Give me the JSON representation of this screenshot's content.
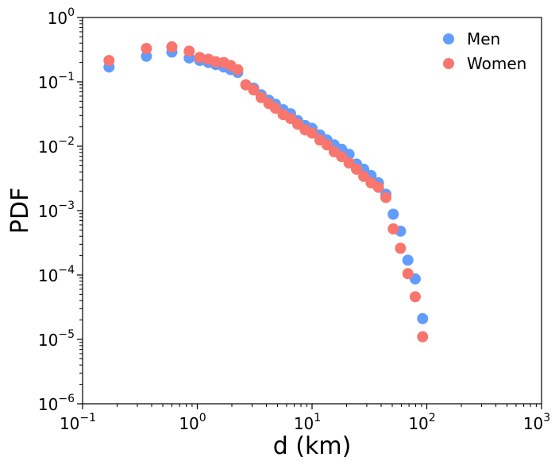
{
  "chart_data": {
    "type": "scatter",
    "title": "",
    "xlabel": "d (km)",
    "ylabel": "PDF",
    "xscale": "log",
    "yscale": "log",
    "xlim": [
      0.1,
      1000
    ],
    "ylim": [
      1e-06,
      1
    ],
    "x_ticks": [
      {
        "base": "10",
        "exp": "−1",
        "value": 0.1
      },
      {
        "base": "10",
        "exp": "0",
        "value": 1
      },
      {
        "base": "10",
        "exp": "1",
        "value": 10
      },
      {
        "base": "10",
        "exp": "2",
        "value": 100
      },
      {
        "base": "10",
        "exp": "3",
        "value": 1000
      }
    ],
    "y_ticks": [
      {
        "base": "10",
        "exp": "0",
        "value": 1
      },
      {
        "base": "10",
        "exp": "−1",
        "value": 0.1
      },
      {
        "base": "10",
        "exp": "−2",
        "value": 0.01
      },
      {
        "base": "10",
        "exp": "−3",
        "value": 0.001
      },
      {
        "base": "10",
        "exp": "−4",
        "value": 0.0001
      },
      {
        "base": "10",
        "exp": "−5",
        "value": 1e-05
      },
      {
        "base": "10",
        "exp": "−6",
        "value": 1e-06
      }
    ],
    "grid": false,
    "legend_position": "top-right",
    "series": [
      {
        "name": "Men",
        "color": "#619CFF",
        "points": [
          [
            0.17,
            0.17
          ],
          [
            0.36,
            0.25
          ],
          [
            0.6,
            0.29
          ],
          [
            0.85,
            0.235
          ],
          [
            1.05,
            0.215
          ],
          [
            1.25,
            0.2
          ],
          [
            1.45,
            0.185
          ],
          [
            1.7,
            0.17
          ],
          [
            1.95,
            0.155
          ],
          [
            2.25,
            0.14
          ],
          [
            2.65,
            0.09
          ],
          [
            3.1,
            0.08
          ],
          [
            3.6,
            0.063
          ],
          [
            4.2,
            0.052
          ],
          [
            4.8,
            0.045
          ],
          [
            5.6,
            0.037
          ],
          [
            6.5,
            0.032
          ],
          [
            7.5,
            0.025
          ],
          [
            8.7,
            0.021
          ],
          [
            10.0,
            0.019
          ],
          [
            11.7,
            0.015
          ],
          [
            13.5,
            0.0125
          ],
          [
            15.6,
            0.0105
          ],
          [
            18.1,
            0.009
          ],
          [
            21.0,
            0.0075
          ],
          [
            24.4,
            0.0053
          ],
          [
            28.2,
            0.0044
          ],
          [
            32.7,
            0.0035
          ],
          [
            37.9,
            0.0027
          ],
          [
            44.0,
            0.0018
          ],
          [
            51.0,
            0.00088
          ],
          [
            59.0,
            0.00048
          ],
          [
            68.4,
            0.00017
          ],
          [
            79.3,
            8.7e-05
          ],
          [
            92.0,
            2.1e-05
          ]
        ]
      },
      {
        "name": "Women",
        "color": "#F8766D",
        "points": [
          [
            0.17,
            0.215
          ],
          [
            0.36,
            0.33
          ],
          [
            0.6,
            0.35
          ],
          [
            0.85,
            0.3
          ],
          [
            1.05,
            0.24
          ],
          [
            1.25,
            0.225
          ],
          [
            1.45,
            0.205
          ],
          [
            1.7,
            0.2
          ],
          [
            1.95,
            0.18
          ],
          [
            2.25,
            0.155
          ],
          [
            2.65,
            0.09
          ],
          [
            3.1,
            0.075
          ],
          [
            3.6,
            0.057
          ],
          [
            4.2,
            0.046
          ],
          [
            4.8,
            0.039
          ],
          [
            5.6,
            0.031
          ],
          [
            6.5,
            0.027
          ],
          [
            7.5,
            0.022
          ],
          [
            8.7,
            0.018
          ],
          [
            10.0,
            0.016
          ],
          [
            11.7,
            0.0125
          ],
          [
            13.5,
            0.0105
          ],
          [
            15.6,
            0.0082
          ],
          [
            18.1,
            0.0069
          ],
          [
            21.0,
            0.0055
          ],
          [
            24.4,
            0.0044
          ],
          [
            28.2,
            0.0034
          ],
          [
            32.7,
            0.0027
          ],
          [
            37.9,
            0.0023
          ],
          [
            44.0,
            0.0016
          ],
          [
            51.0,
            0.00052
          ],
          [
            59.0,
            0.00026
          ],
          [
            68.4,
            0.000105
          ],
          [
            79.3,
            4.6e-05
          ],
          [
            92.0,
            1.1e-05
          ]
        ]
      }
    ]
  }
}
